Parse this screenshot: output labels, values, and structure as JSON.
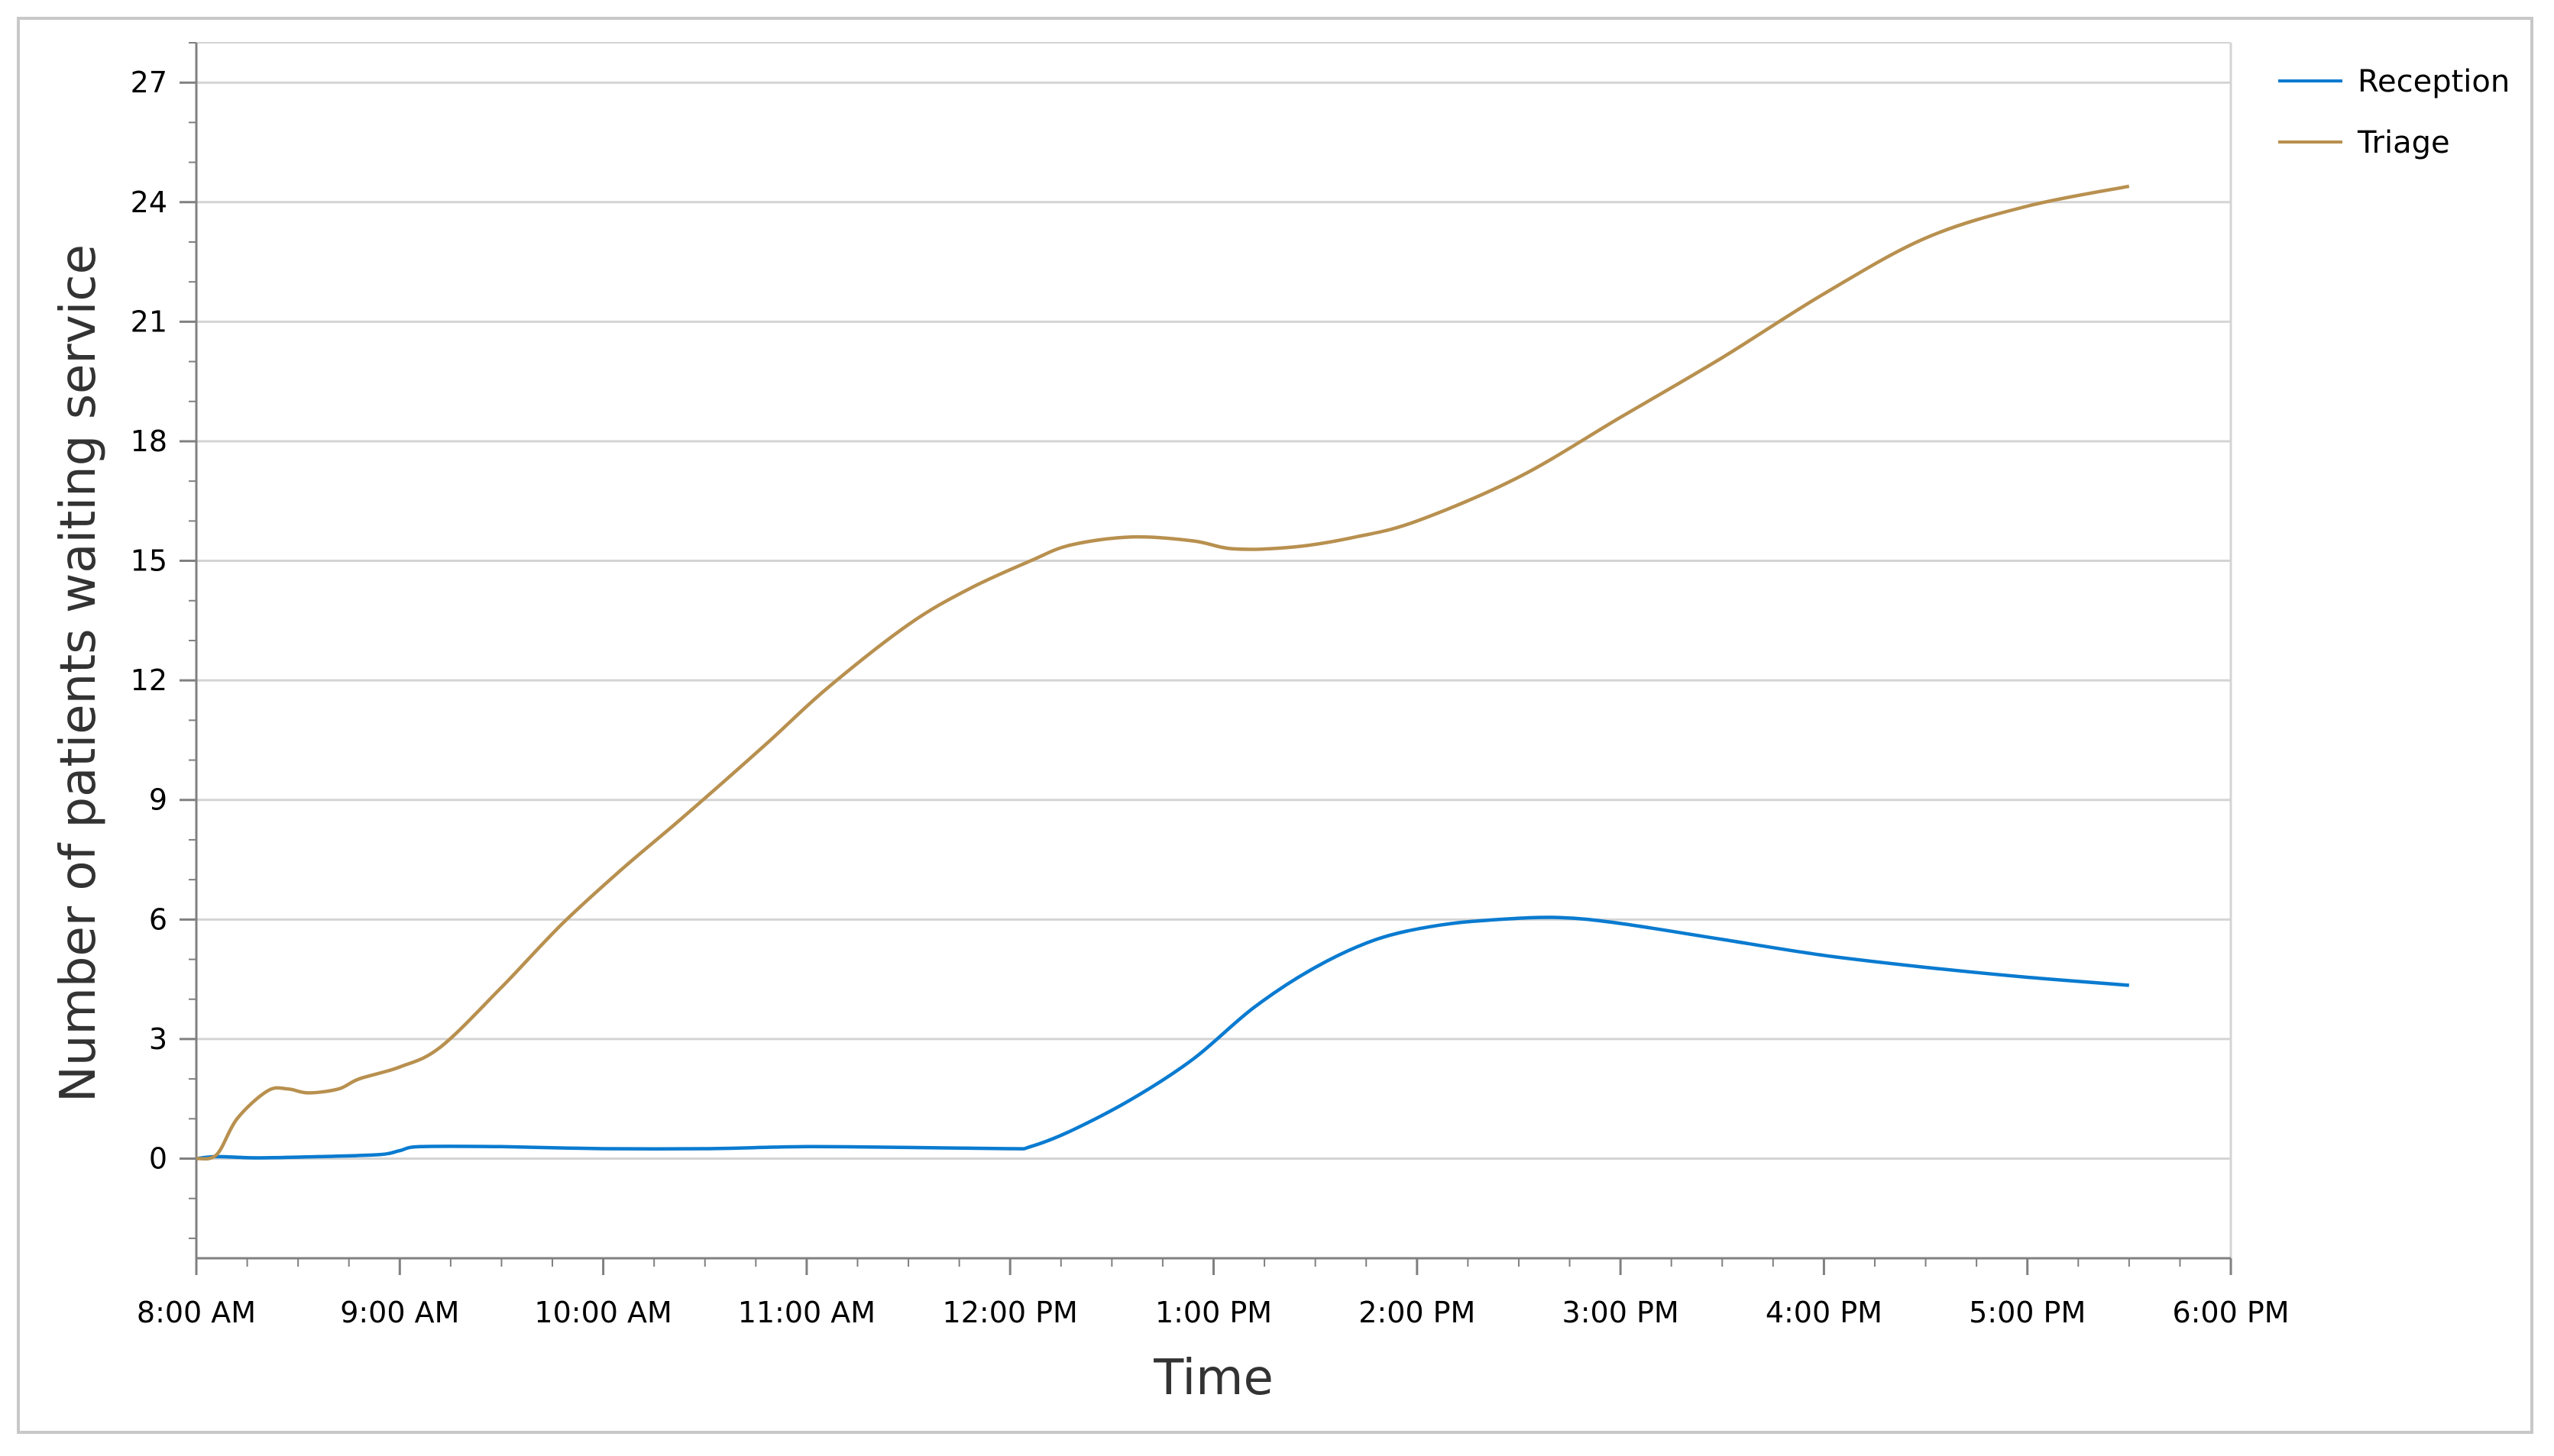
{
  "colors": {
    "reception": "#0a7bd0",
    "triage": "#b8904f",
    "grid": "#d4d4d4",
    "axis": "#808080",
    "border": "#c8c8c8"
  },
  "chart_data": {
    "type": "line",
    "xlabel": "Time",
    "ylabel": "Number of patients waiting service",
    "x_ticks": [
      "8:00 AM",
      "9:00 AM",
      "10:00 AM",
      "11:00 AM",
      "12:00 PM",
      "1:00 PM",
      "2:00 PM",
      "3:00 PM",
      "4:00 PM",
      "5:00 PM",
      "6:00 PM"
    ],
    "x_unit": "hours since 8:00 AM",
    "xlim": [
      0,
      10
    ],
    "ylim": [
      -2.5,
      28
    ],
    "y_ticks": [
      0,
      3,
      6,
      9,
      12,
      15,
      18,
      21,
      24,
      27
    ],
    "grid": true,
    "legend": "top-right",
    "series": [
      {
        "name": "Reception",
        "x": [
          0,
          0.1,
          0.3,
          0.6,
          0.9,
          1.0,
          1.1,
          1.5,
          2.0,
          2.5,
          3.0,
          3.5,
          4.0,
          4.1,
          4.3,
          4.6,
          4.9,
          5.2,
          5.5,
          5.8,
          6.1,
          6.4,
          6.7,
          7.0,
          7.5,
          8.0,
          8.5,
          9.0,
          9.5
        ],
        "values": [
          0,
          0.05,
          0.02,
          0.05,
          0.1,
          0.2,
          0.3,
          0.3,
          0.25,
          0.25,
          0.3,
          0.28,
          0.25,
          0.3,
          0.7,
          1.5,
          2.5,
          3.8,
          4.8,
          5.5,
          5.85,
          6.0,
          6.05,
          5.9,
          5.5,
          5.1,
          4.8,
          4.55,
          4.35
        ]
      },
      {
        "name": "Triage",
        "x": [
          0,
          0.1,
          0.2,
          0.35,
          0.45,
          0.55,
          0.7,
          0.8,
          1.0,
          1.2,
          1.5,
          1.8,
          2.1,
          2.4,
          2.8,
          3.1,
          3.5,
          3.8,
          4.1,
          4.3,
          4.6,
          4.9,
          5.1,
          5.4,
          5.7,
          6.0,
          6.5,
          7.0,
          7.5,
          8.0,
          8.5,
          9.0,
          9.5
        ],
        "values": [
          0,
          0.1,
          1.0,
          1.7,
          1.75,
          1.65,
          1.75,
          2.0,
          2.3,
          2.8,
          4.3,
          5.9,
          7.3,
          8.6,
          10.4,
          11.8,
          13.4,
          14.3,
          15.0,
          15.4,
          15.6,
          15.5,
          15.3,
          15.35,
          15.6,
          16.0,
          17.1,
          18.6,
          20.1,
          21.7,
          23.1,
          23.9,
          24.4
        ]
      }
    ]
  }
}
